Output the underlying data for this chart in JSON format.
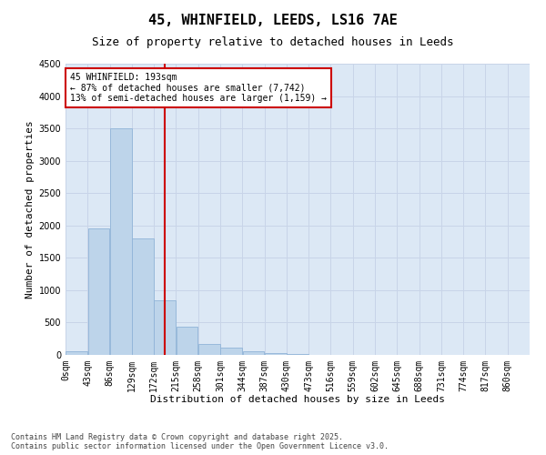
{
  "title": "45, WHINFIELD, LEEDS, LS16 7AE",
  "subtitle": "Size of property relative to detached houses in Leeds",
  "xlabel": "Distribution of detached houses by size in Leeds",
  "ylabel": "Number of detached properties",
  "bin_labels": [
    "0sqm",
    "43sqm",
    "86sqm",
    "129sqm",
    "172sqm",
    "215sqm",
    "258sqm",
    "301sqm",
    "344sqm",
    "387sqm",
    "430sqm",
    "473sqm",
    "516sqm",
    "559sqm",
    "602sqm",
    "645sqm",
    "688sqm",
    "731sqm",
    "774sqm",
    "817sqm",
    "860sqm"
  ],
  "bin_edges": [
    0,
    43,
    86,
    129,
    172,
    215,
    258,
    301,
    344,
    387,
    430,
    473,
    516,
    559,
    602,
    645,
    688,
    731,
    774,
    817,
    860
  ],
  "bar_values": [
    50,
    1950,
    3500,
    1800,
    850,
    430,
    170,
    110,
    60,
    30,
    10,
    5,
    3,
    2,
    1,
    1,
    0,
    0,
    0,
    0
  ],
  "bar_color": "#bdd4ea",
  "bar_edgecolor": "#90b4d8",
  "property_size": 193,
  "vline_color": "#cc0000",
  "annotation_line1": "45 WHINFIELD: 193sqm",
  "annotation_line2": "← 87% of detached houses are smaller (7,742)",
  "annotation_line3": "13% of semi-detached houses are larger (1,159) →",
  "annotation_box_facecolor": "#ffffff",
  "annotation_box_edgecolor": "#cc0000",
  "ylim": [
    0,
    4500
  ],
  "yticks": [
    0,
    500,
    1000,
    1500,
    2000,
    2500,
    3000,
    3500,
    4000,
    4500
  ],
  "grid_color": "#c8d4e8",
  "background_color": "#dce8f5",
  "footer_line1": "Contains HM Land Registry data © Crown copyright and database right 2025.",
  "footer_line2": "Contains public sector information licensed under the Open Government Licence v3.0.",
  "title_fontsize": 11,
  "subtitle_fontsize": 9,
  "xlabel_fontsize": 8,
  "ylabel_fontsize": 8,
  "tick_fontsize": 7,
  "annotation_fontsize": 7,
  "footer_fontsize": 6
}
